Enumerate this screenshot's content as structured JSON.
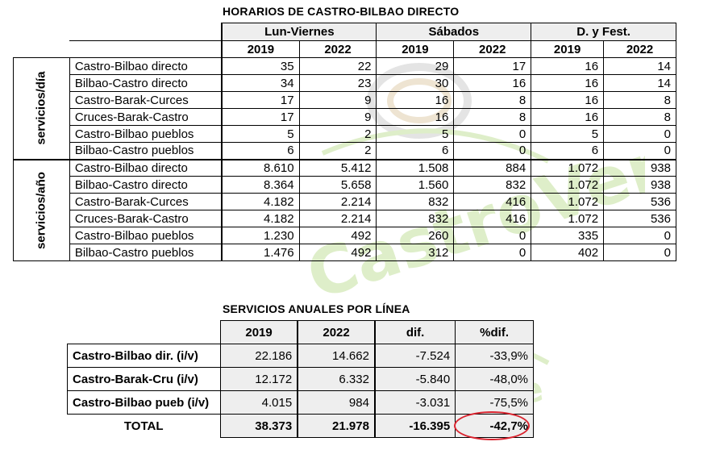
{
  "table1": {
    "title": "HORARIOS DE CASTRO-BILBAO DIRECTO",
    "groups": [
      "Lun-Viernes",
      "Sábados",
      "D. y Fest."
    ],
    "years": [
      "2019",
      "2022",
      "2019",
      "2022",
      "2019",
      "2022"
    ],
    "sections": [
      {
        "label": "servicios/día",
        "rows": [
          {
            "name": "Castro-Bilbao directo",
            "values": [
              "35",
              "22",
              "29",
              "17",
              "16",
              "14"
            ]
          },
          {
            "name": "Bilbao-Castro directo",
            "values": [
              "34",
              "23",
              "30",
              "16",
              "16",
              "14"
            ]
          },
          {
            "name": "Castro-Barak-Curces",
            "values": [
              "17",
              "9",
              "16",
              "8",
              "16",
              "8"
            ]
          },
          {
            "name": "Cruces-Barak-Castro",
            "values": [
              "17",
              "9",
              "16",
              "8",
              "16",
              "8"
            ]
          },
          {
            "name": "Castro-Bilbao pueblos",
            "values": [
              "5",
              "2",
              "5",
              "0",
              "5",
              "0"
            ]
          },
          {
            "name": "Bilbao-Castro pueblos",
            "values": [
              "6",
              "2",
              "6",
              "0",
              "6",
              "0"
            ]
          }
        ]
      },
      {
        "label": "servicios/año",
        "rows": [
          {
            "name": "Castro-Bilbao directo",
            "values": [
              "8.610",
              "5.412",
              "1.508",
              "884",
              "1.072",
              "938"
            ]
          },
          {
            "name": "Bilbao-Castro directo",
            "values": [
              "8.364",
              "5.658",
              "1.560",
              "832",
              "1.072",
              "938"
            ]
          },
          {
            "name": "Castro-Barak-Curces",
            "values": [
              "4.182",
              "2.214",
              "832",
              "416",
              "1.072",
              "536"
            ]
          },
          {
            "name": "Cruces-Barak-Castro",
            "values": [
              "4.182",
              "2.214",
              "832",
              "416",
              "1.072",
              "536"
            ]
          },
          {
            "name": "Castro-Bilbao pueblos",
            "values": [
              "1.230",
              "492",
              "260",
              "0",
              "335",
              "0"
            ]
          },
          {
            "name": "Bilbao-Castro pueblos",
            "values": [
              "1.476",
              "492",
              "312",
              "0",
              "402",
              "0"
            ]
          }
        ]
      }
    ]
  },
  "table2": {
    "title": "SERVICIOS ANUALES POR LÍNEA",
    "headers": [
      "2019",
      "2022",
      "dif.",
      "%dif."
    ],
    "rows": [
      {
        "name": "Castro-Bilbao dir. (i/v)",
        "values": [
          "22.186",
          "14.662",
          "-7.524",
          "-33,9%"
        ]
      },
      {
        "name": "Castro-Barak-Cru (i/v)",
        "values": [
          "12.172",
          "6.332",
          "-5.840",
          "-48,0%"
        ]
      },
      {
        "name": "Castro-Bilbao pueb (i/v)",
        "values": [
          "4.015",
          "984",
          "-3.031",
          "-75,5%"
        ]
      }
    ],
    "total": {
      "name": "TOTAL",
      "values": [
        "38.373",
        "21.978",
        "-16.395",
        "-42,7%"
      ]
    }
  },
  "watermark": {
    "text": "CastroVerde",
    "color": "#8dc63f"
  },
  "highlight_color": "#d9232e"
}
